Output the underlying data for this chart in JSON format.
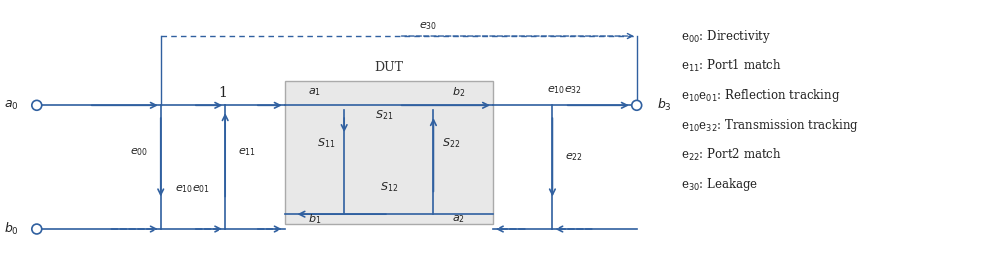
{
  "fig_width": 10.05,
  "fig_height": 2.7,
  "dpi": 100,
  "arrow_color": "#3060a0",
  "line_color": "#3060a0",
  "box_fill": "#e8e8e8",
  "box_edge": "#aaaaaa",
  "text_color": "#222222",
  "legend_items": [
    {
      "label": "e$_{00}$",
      "desc": ": Directivity"
    },
    {
      "label": "e$_{11}$",
      "desc": ": Port1 match"
    },
    {
      "label": "e$_{10}$e$_{01}$",
      "desc": ": Reflection tracking"
    },
    {
      "label": "e$_{10}$e$_{32}$",
      "desc": ": Transmission tracking"
    },
    {
      "label": "e$_{22}$",
      "desc": ": Port2 match"
    },
    {
      "label": "e$_{30}$",
      "desc": ": Leakage"
    }
  ]
}
